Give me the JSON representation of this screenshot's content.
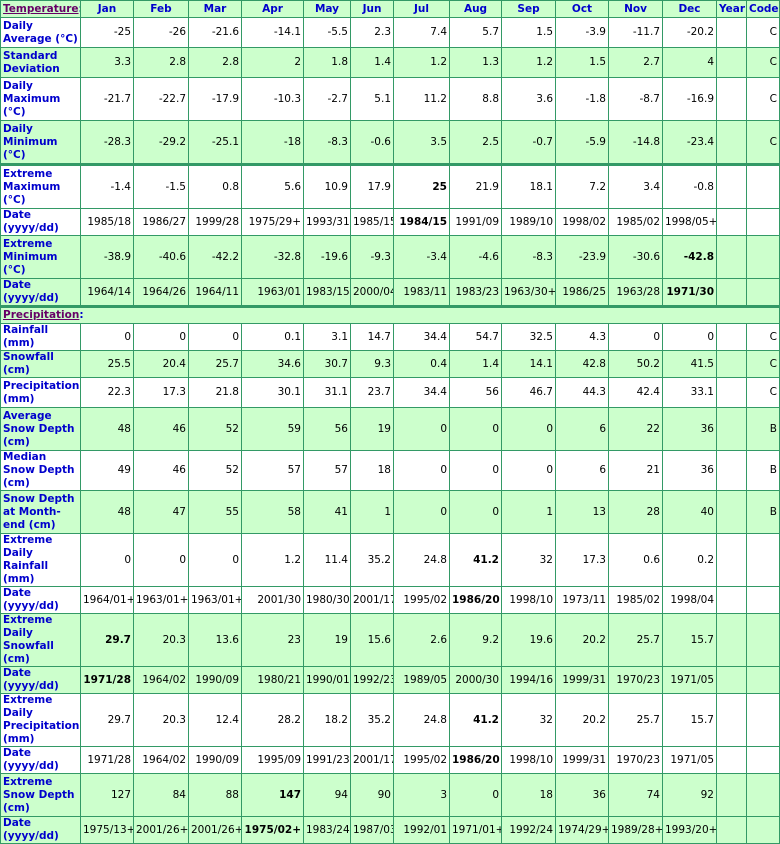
{
  "colors": {
    "accent_green": "#ccffcc",
    "border": "#339966",
    "label_blue": "#0000cc",
    "section_purple": "#660066"
  },
  "header": {
    "section": "Temperature",
    "colon": ":",
    "months": [
      "Jan",
      "Feb",
      "Mar",
      "Apr",
      "May",
      "Jun",
      "Jul",
      "Aug",
      "Sep",
      "Oct",
      "Nov",
      "Dec"
    ],
    "year": "Year",
    "code": "Code"
  },
  "temperature_rows": [
    {
      "label": "Daily Average (°C)",
      "values": [
        "-25",
        "-26",
        "-21.6",
        "-14.1",
        "-5.5",
        "2.3",
        "7.4",
        "5.7",
        "1.5",
        "-3.9",
        "-11.7",
        "-20.2"
      ],
      "year": "",
      "code": "C",
      "shade": "w"
    },
    {
      "label": "Standard Deviation",
      "values": [
        "3.3",
        "2.8",
        "2.8",
        "2",
        "1.8",
        "1.4",
        "1.2",
        "1.3",
        "1.2",
        "1.5",
        "2.7",
        "4"
      ],
      "year": "",
      "code": "C",
      "shade": "g"
    },
    {
      "label": "Daily Maximum (°C)",
      "values": [
        "-21.7",
        "-22.7",
        "-17.9",
        "-10.3",
        "-2.7",
        "5.1",
        "11.2",
        "8.8",
        "3.6",
        "-1.8",
        "-8.7",
        "-16.9"
      ],
      "year": "",
      "code": "C",
      "shade": "w"
    },
    {
      "label": "Daily Minimum (°C)",
      "values": [
        "-28.3",
        "-29.2",
        "-25.1",
        "-18",
        "-8.3",
        "-0.6",
        "3.5",
        "2.5",
        "-0.7",
        "-5.9",
        "-14.8",
        "-23.4"
      ],
      "year": "",
      "code": "C",
      "shade": "g"
    },
    {
      "label": "Extreme Maximum (°C)",
      "values": [
        "-1.4",
        "-1.5",
        "0.8",
        "5.6",
        "10.9",
        "17.9",
        "25",
        "21.9",
        "18.1",
        "7.2",
        "3.4",
        "-0.8"
      ],
      "year": "",
      "code": "",
      "shade": "w",
      "bold": 6,
      "thick": true
    },
    {
      "label": "Date (yyyy/dd)",
      "values": [
        "1985/18",
        "1986/27",
        "1999/28",
        "1975/29+",
        "1993/31",
        "1985/15",
        "1984/15",
        "1991/09",
        "1989/10",
        "1998/02",
        "1985/02",
        "1998/05+"
      ],
      "year": "",
      "code": "",
      "shade": "w",
      "bold": 6
    },
    {
      "label": "Extreme Minimum (°C)",
      "values": [
        "-38.9",
        "-40.6",
        "-42.2",
        "-32.8",
        "-19.6",
        "-9.3",
        "-3.4",
        "-4.6",
        "-8.3",
        "-23.9",
        "-30.6",
        "-42.8"
      ],
      "year": "",
      "code": "",
      "shade": "g",
      "bold": 11
    },
    {
      "label": "Date (yyyy/dd)",
      "values": [
        "1964/14",
        "1964/26",
        "1964/11",
        "1963/01",
        "1983/15",
        "2000/04",
        "1983/11",
        "1983/23",
        "1963/30+",
        "1986/25",
        "1963/28",
        "1971/30"
      ],
      "year": "",
      "code": "",
      "shade": "g",
      "bold": 11
    }
  ],
  "precip_section": {
    "label": "Precipitation",
    "colon": ":"
  },
  "precipitation_rows": [
    {
      "label": "Rainfall (mm)",
      "values": [
        "0",
        "0",
        "0",
        "0.1",
        "3.1",
        "14.7",
        "34.4",
        "54.7",
        "32.5",
        "4.3",
        "0",
        "0"
      ],
      "year": "",
      "code": "C",
      "shade": "w"
    },
    {
      "label": "Snowfall (cm)",
      "values": [
        "25.5",
        "20.4",
        "25.7",
        "34.6",
        "30.7",
        "9.3",
        "0.4",
        "1.4",
        "14.1",
        "42.8",
        "50.2",
        "41.5"
      ],
      "year": "",
      "code": "C",
      "shade": "g"
    },
    {
      "label": "Precipitation (mm)",
      "values": [
        "22.3",
        "17.3",
        "21.8",
        "30.1",
        "31.1",
        "23.7",
        "34.4",
        "56",
        "46.7",
        "44.3",
        "42.4",
        "33.1"
      ],
      "year": "",
      "code": "C",
      "shade": "w"
    },
    {
      "label": "Average Snow Depth (cm)",
      "values": [
        "48",
        "46",
        "52",
        "59",
        "56",
        "19",
        "0",
        "0",
        "0",
        "6",
        "22",
        "36"
      ],
      "year": "",
      "code": "B",
      "shade": "g"
    },
    {
      "label": "Median Snow Depth (cm)",
      "values": [
        "49",
        "46",
        "52",
        "57",
        "57",
        "18",
        "0",
        "0",
        "0",
        "6",
        "21",
        "36"
      ],
      "year": "",
      "code": "B",
      "shade": "w"
    },
    {
      "label": "Snow Depth at Month-end (cm)",
      "values": [
        "48",
        "47",
        "55",
        "58",
        "41",
        "1",
        "0",
        "0",
        "1",
        "13",
        "28",
        "40"
      ],
      "year": "",
      "code": "B",
      "shade": "g"
    },
    {
      "label": "Extreme Daily Rainfall (mm)",
      "values": [
        "0",
        "0",
        "0",
        "1.2",
        "11.4",
        "35.2",
        "24.8",
        "41.2",
        "32",
        "17.3",
        "0.6",
        "0.2"
      ],
      "year": "",
      "code": "",
      "shade": "w",
      "bold": 7
    },
    {
      "label": "Date (yyyy/dd)",
      "values": [
        "1964/01+",
        "1963/01+",
        "1963/01+",
        "2001/30",
        "1980/30",
        "2001/17",
        "1995/02",
        "1986/20",
        "1998/10",
        "1973/11",
        "1985/02",
        "1998/04"
      ],
      "year": "",
      "code": "",
      "shade": "w",
      "bold": 7
    },
    {
      "label": "Extreme Daily Snowfall (cm)",
      "values": [
        "29.7",
        "20.3",
        "13.6",
        "23",
        "19",
        "15.6",
        "2.6",
        "9.2",
        "19.6",
        "20.2",
        "25.7",
        "15.7"
      ],
      "year": "",
      "code": "",
      "shade": "g",
      "bold": 0
    },
    {
      "label": "Date (yyyy/dd)",
      "values": [
        "1971/28",
        "1964/02",
        "1990/09",
        "1980/21",
        "1990/01",
        "1992/23",
        "1989/05",
        "2000/30",
        "1994/16",
        "1999/31",
        "1970/23",
        "1971/05"
      ],
      "year": "",
      "code": "",
      "shade": "g",
      "bold": 0
    },
    {
      "label": "Extreme Daily Precipitation (mm)",
      "values": [
        "29.7",
        "20.3",
        "12.4",
        "28.2",
        "18.2",
        "35.2",
        "24.8",
        "41.2",
        "32",
        "20.2",
        "25.7",
        "15.7"
      ],
      "year": "",
      "code": "",
      "shade": "w",
      "bold": 7
    },
    {
      "label": "Date (yyyy/dd)",
      "values": [
        "1971/28",
        "1964/02",
        "1990/09",
        "1995/09",
        "1991/23",
        "2001/17",
        "1995/02",
        "1986/20",
        "1998/10",
        "1999/31",
        "1970/23",
        "1971/05"
      ],
      "year": "",
      "code": "",
      "shade": "w",
      "bold": 7
    },
    {
      "label": "Extreme Snow Depth (cm)",
      "values": [
        "127",
        "84",
        "88",
        "147",
        "94",
        "90",
        "3",
        "0",
        "18",
        "36",
        "74",
        "92"
      ],
      "year": "",
      "code": "",
      "shade": "g",
      "bold": 3
    },
    {
      "label": "Date (yyyy/dd)",
      "values": [
        "1975/13+",
        "2001/26+",
        "2001/26+",
        "1975/02+",
        "1983/24",
        "1987/03",
        "1992/01",
        "1971/01+",
        "1992/24",
        "1974/29+",
        "1989/28+",
        "1993/20+"
      ],
      "year": "",
      "code": "",
      "shade": "g",
      "bold": 3
    }
  ]
}
